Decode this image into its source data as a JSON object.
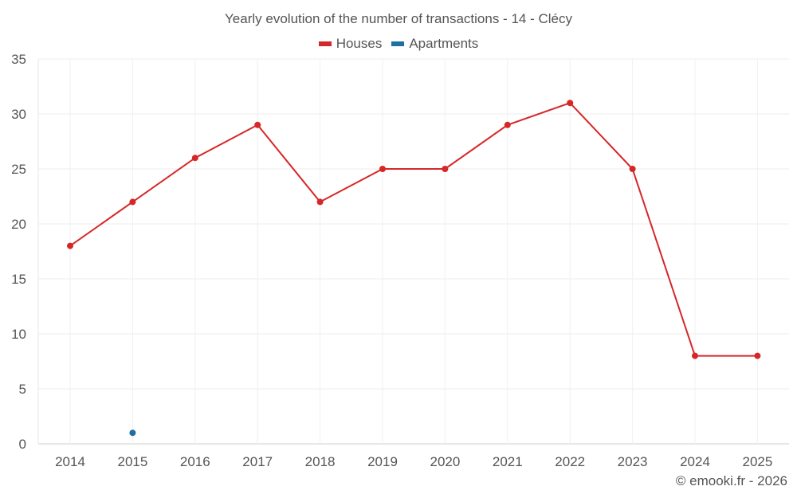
{
  "chart_data": {
    "type": "line",
    "title": "Yearly evolution of the number of transactions - 14 - Clécy",
    "categories": [
      "2014",
      "2015",
      "2016",
      "2017",
      "2018",
      "2019",
      "2020",
      "2021",
      "2022",
      "2023",
      "2024",
      "2025"
    ],
    "series": [
      {
        "name": "Houses",
        "color": "#d62728",
        "values": [
          18,
          22,
          26,
          29,
          22,
          25,
          25,
          29,
          31,
          25,
          8,
          8
        ]
      },
      {
        "name": "Apartments",
        "color": "#1f6fa3",
        "values": [
          null,
          1,
          null,
          null,
          null,
          null,
          null,
          null,
          null,
          null,
          null,
          null
        ]
      }
    ],
    "ylim": [
      0,
      35
    ],
    "yticks": [
      0,
      5,
      10,
      15,
      20,
      25,
      30,
      35
    ],
    "xlabel": "",
    "ylabel": "",
    "grid": true,
    "legend_position": "top-center"
  },
  "credit": "© emooki.fr - 2026",
  "legend": {
    "houses": "Houses",
    "apartments": "Apartments"
  }
}
